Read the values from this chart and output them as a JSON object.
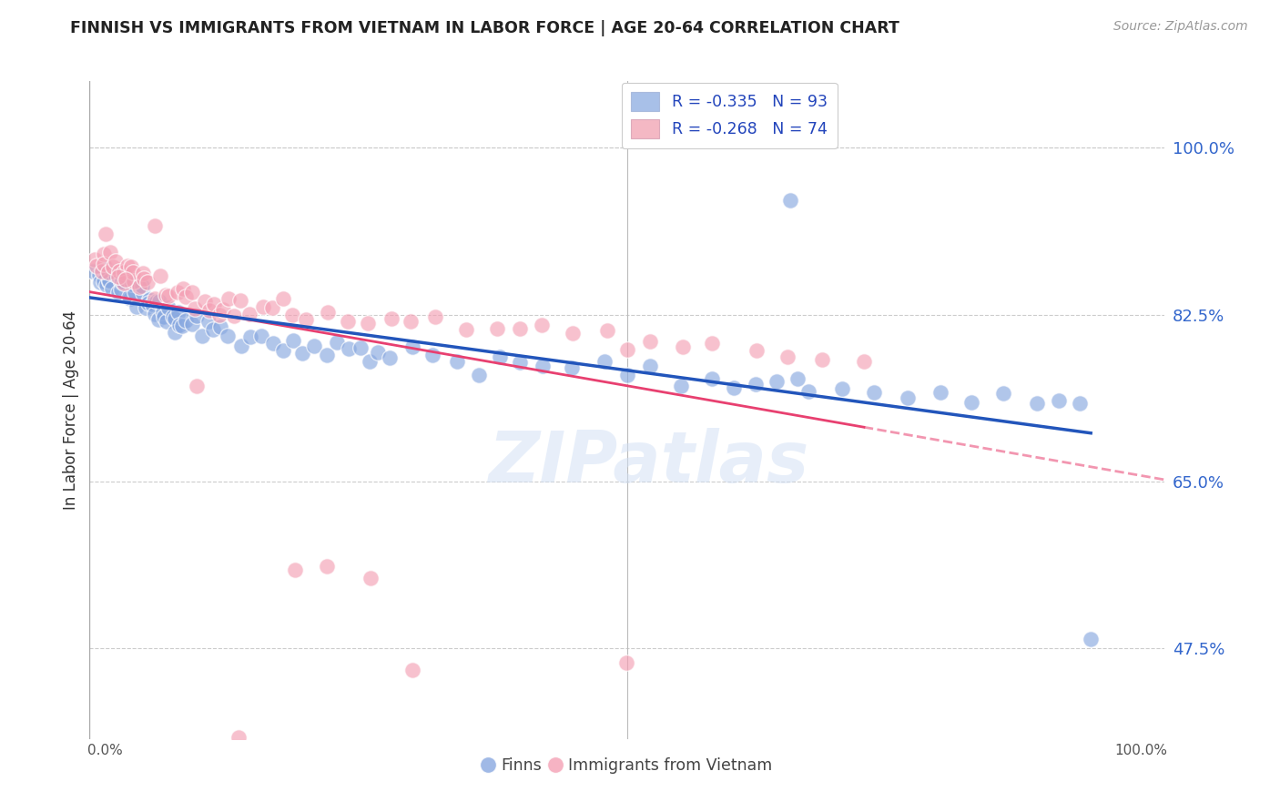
{
  "title": "FINNISH VS IMMIGRANTS FROM VIETNAM IN LABOR FORCE | AGE 20-64 CORRELATION CHART",
  "source": "Source: ZipAtlas.com",
  "ylabel": "In Labor Force | Age 20-64",
  "ytick_labels": [
    "100.0%",
    "82.5%",
    "65.0%",
    "47.5%"
  ],
  "ytick_values": [
    1.0,
    0.825,
    0.65,
    0.475
  ],
  "xlim": [
    0.0,
    1.0
  ],
  "ylim": [
    0.38,
    1.07
  ],
  "watermark": "ZIPatlas",
  "legend_entries": [
    {
      "label": "R = -0.335   N = 93",
      "facecolor": "#a8c0e8"
    },
    {
      "label": "R = -0.268   N = 74",
      "facecolor": "#f4b8c4"
    }
  ],
  "legend_bottom": [
    "Finns",
    "Immigrants from Vietnam"
  ],
  "finn_color": "#88a8e0",
  "viet_color": "#f4a0b4",
  "finn_line_color": "#2255bb",
  "viet_line_color": "#e84070",
  "finn_R": -0.335,
  "finn_N": 93,
  "viet_R": -0.268,
  "viet_N": 74,
  "finn_scatter_x": [
    0.005,
    0.008,
    0.01,
    0.012,
    0.014,
    0.016,
    0.018,
    0.02,
    0.022,
    0.024,
    0.026,
    0.028,
    0.03,
    0.032,
    0.034,
    0.036,
    0.038,
    0.04,
    0.042,
    0.044,
    0.046,
    0.048,
    0.05,
    0.052,
    0.054,
    0.056,
    0.058,
    0.06,
    0.062,
    0.064,
    0.066,
    0.068,
    0.07,
    0.072,
    0.074,
    0.076,
    0.078,
    0.08,
    0.082,
    0.084,
    0.086,
    0.09,
    0.095,
    0.1,
    0.105,
    0.11,
    0.115,
    0.12,
    0.13,
    0.14,
    0.15,
    0.16,
    0.17,
    0.18,
    0.19,
    0.2,
    0.21,
    0.22,
    0.23,
    0.24,
    0.25,
    0.26,
    0.27,
    0.28,
    0.3,
    0.32,
    0.34,
    0.36,
    0.38,
    0.4,
    0.42,
    0.45,
    0.48,
    0.5,
    0.52,
    0.55,
    0.58,
    0.6,
    0.62,
    0.64,
    0.67,
    0.7,
    0.73,
    0.76,
    0.79,
    0.82,
    0.85,
    0.88,
    0.9,
    0.92,
    0.93,
    0.65,
    0.66
  ],
  "finn_scatter_y": [
    0.865,
    0.87,
    0.86,
    0.855,
    0.87,
    0.862,
    0.858,
    0.868,
    0.855,
    0.862,
    0.85,
    0.858,
    0.848,
    0.855,
    0.862,
    0.85,
    0.845,
    0.858,
    0.84,
    0.848,
    0.855,
    0.842,
    0.848,
    0.838,
    0.845,
    0.835,
    0.842,
    0.83,
    0.838,
    0.825,
    0.835,
    0.822,
    0.83,
    0.818,
    0.828,
    0.815,
    0.825,
    0.812,
    0.822,
    0.808,
    0.818,
    0.82,
    0.812,
    0.818,
    0.808,
    0.815,
    0.805,
    0.812,
    0.808,
    0.8,
    0.805,
    0.798,
    0.802,
    0.795,
    0.8,
    0.792,
    0.798,
    0.79,
    0.796,
    0.786,
    0.792,
    0.782,
    0.788,
    0.778,
    0.784,
    0.775,
    0.78,
    0.77,
    0.776,
    0.768,
    0.772,
    0.765,
    0.77,
    0.76,
    0.765,
    0.758,
    0.762,
    0.752,
    0.758,
    0.748,
    0.752,
    0.745,
    0.75,
    0.74,
    0.745,
    0.738,
    0.742,
    0.732,
    0.738,
    0.728,
    0.49,
    0.95,
    0.76
  ],
  "viet_scatter_x": [
    0.005,
    0.008,
    0.01,
    0.012,
    0.015,
    0.018,
    0.02,
    0.022,
    0.025,
    0.028,
    0.03,
    0.032,
    0.035,
    0.038,
    0.04,
    0.042,
    0.045,
    0.048,
    0.05,
    0.055,
    0.06,
    0.065,
    0.07,
    0.075,
    0.08,
    0.085,
    0.09,
    0.095,
    0.1,
    0.105,
    0.11,
    0.115,
    0.12,
    0.125,
    0.13,
    0.135,
    0.14,
    0.15,
    0.16,
    0.17,
    0.18,
    0.19,
    0.2,
    0.22,
    0.24,
    0.26,
    0.28,
    0.3,
    0.32,
    0.35,
    0.38,
    0.4,
    0.42,
    0.45,
    0.48,
    0.5,
    0.52,
    0.55,
    0.58,
    0.62,
    0.65,
    0.68,
    0.72,
    0.015,
    0.025,
    0.035,
    0.06,
    0.1,
    0.14,
    0.19,
    0.22,
    0.26,
    0.3,
    0.5
  ],
  "viet_scatter_y": [
    0.875,
    0.882,
    0.878,
    0.885,
    0.88,
    0.872,
    0.885,
    0.878,
    0.875,
    0.868,
    0.872,
    0.865,
    0.88,
    0.868,
    0.862,
    0.875,
    0.858,
    0.862,
    0.868,
    0.855,
    0.848,
    0.858,
    0.845,
    0.852,
    0.842,
    0.855,
    0.84,
    0.848,
    0.838,
    0.845,
    0.835,
    0.842,
    0.832,
    0.838,
    0.835,
    0.83,
    0.84,
    0.832,
    0.838,
    0.828,
    0.835,
    0.825,
    0.828,
    0.82,
    0.825,
    0.818,
    0.82,
    0.812,
    0.818,
    0.808,
    0.812,
    0.805,
    0.808,
    0.8,
    0.805,
    0.795,
    0.8,
    0.792,
    0.795,
    0.782,
    0.785,
    0.775,
    0.778,
    0.905,
    0.87,
    0.862,
    0.925,
    0.755,
    0.375,
    0.56,
    0.555,
    0.548,
    0.46,
    0.455
  ]
}
